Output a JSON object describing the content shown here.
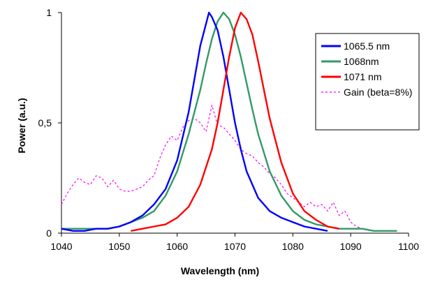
{
  "chart_data": {
    "type": "line",
    "title": "",
    "xlabel": "Wavelength (nm)",
    "ylabel": "Power (a.u.)",
    "xlim": [
      1040,
      1100
    ],
    "ylim": [
      0,
      1
    ],
    "x_ticks": [
      "1040",
      "1050",
      "1060",
      "1070",
      "1080",
      "1090",
      "1100"
    ],
    "y_ticks": [
      "0",
      "0,5",
      "1"
    ],
    "x_tick_values": [
      1040,
      1050,
      1060,
      1070,
      1080,
      1090,
      1100
    ],
    "y_tick_values": [
      0,
      0.5,
      1
    ],
    "grid": false,
    "legend_position": "top-right",
    "series": [
      {
        "name": "1065.5 nm",
        "color": "#0000ff",
        "style": "solid",
        "points": [
          [
            1040,
            0.02
          ],
          [
            1042,
            0.01
          ],
          [
            1044,
            0.01
          ],
          [
            1046,
            0.02
          ],
          [
            1048,
            0.02
          ],
          [
            1050,
            0.03
          ],
          [
            1052,
            0.05
          ],
          [
            1054,
            0.08
          ],
          [
            1056,
            0.13
          ],
          [
            1058,
            0.2
          ],
          [
            1060,
            0.33
          ],
          [
            1062,
            0.55
          ],
          [
            1063,
            0.7
          ],
          [
            1064,
            0.85
          ],
          [
            1065,
            0.95
          ],
          [
            1065.5,
            1.0
          ],
          [
            1066,
            0.98
          ],
          [
            1067,
            0.92
          ],
          [
            1068,
            0.8
          ],
          [
            1069,
            0.65
          ],
          [
            1070,
            0.5
          ],
          [
            1071,
            0.38
          ],
          [
            1072,
            0.28
          ],
          [
            1074,
            0.16
          ],
          [
            1076,
            0.1
          ],
          [
            1078,
            0.07
          ],
          [
            1080,
            0.05
          ],
          [
            1082,
            0.03
          ],
          [
            1084,
            0.02
          ],
          [
            1086,
            0.01
          ]
        ]
      },
      {
        "name": "1068nm",
        "color": "#339966",
        "style": "solid",
        "points": [
          [
            1040,
            0.02
          ],
          [
            1042,
            0.02
          ],
          [
            1044,
            0.02
          ],
          [
            1046,
            0.02
          ],
          [
            1048,
            0.02
          ],
          [
            1050,
            0.03
          ],
          [
            1052,
            0.05
          ],
          [
            1054,
            0.07
          ],
          [
            1056,
            0.1
          ],
          [
            1058,
            0.17
          ],
          [
            1060,
            0.28
          ],
          [
            1062,
            0.45
          ],
          [
            1064,
            0.65
          ],
          [
            1065,
            0.77
          ],
          [
            1066,
            0.88
          ],
          [
            1067,
            0.96
          ],
          [
            1068,
            1.0
          ],
          [
            1069,
            0.97
          ],
          [
            1070,
            0.9
          ],
          [
            1071,
            0.8
          ],
          [
            1072,
            0.68
          ],
          [
            1073,
            0.56
          ],
          [
            1074,
            0.45
          ],
          [
            1076,
            0.28
          ],
          [
            1078,
            0.17
          ],
          [
            1080,
            0.1
          ],
          [
            1082,
            0.06
          ],
          [
            1084,
            0.04
          ],
          [
            1086,
            0.03
          ],
          [
            1088,
            0.02
          ],
          [
            1090,
            0.02
          ],
          [
            1092,
            0.02
          ],
          [
            1094,
            0.01
          ],
          [
            1096,
            0.01
          ],
          [
            1098,
            0.01
          ]
        ]
      },
      {
        "name": "1071 nm",
        "color": "#ff0000",
        "style": "solid",
        "points": [
          [
            1052,
            0.01
          ],
          [
            1054,
            0.02
          ],
          [
            1056,
            0.03
          ],
          [
            1058,
            0.04
          ],
          [
            1060,
            0.07
          ],
          [
            1062,
            0.12
          ],
          [
            1064,
            0.22
          ],
          [
            1066,
            0.38
          ],
          [
            1067,
            0.5
          ],
          [
            1068,
            0.65
          ],
          [
            1069,
            0.8
          ],
          [
            1070,
            0.93
          ],
          [
            1071,
            1.0
          ],
          [
            1072,
            0.97
          ],
          [
            1073,
            0.9
          ],
          [
            1074,
            0.78
          ],
          [
            1075,
            0.65
          ],
          [
            1076,
            0.52
          ],
          [
            1077,
            0.42
          ],
          [
            1078,
            0.32
          ],
          [
            1080,
            0.18
          ],
          [
            1082,
            0.1
          ],
          [
            1084,
            0.06
          ],
          [
            1086,
            0.03
          ],
          [
            1088,
            0.02
          ]
        ]
      },
      {
        "name": "Gain (beta=8%)",
        "color": "#ff00ff",
        "style": "dashed",
        "points": [
          [
            1040,
            0.13
          ],
          [
            1041,
            0.18
          ],
          [
            1042,
            0.22
          ],
          [
            1043,
            0.25
          ],
          [
            1044,
            0.23
          ],
          [
            1045,
            0.22
          ],
          [
            1046,
            0.26
          ],
          [
            1047,
            0.25
          ],
          [
            1048,
            0.21
          ],
          [
            1049,
            0.24
          ],
          [
            1050,
            0.2
          ],
          [
            1051,
            0.19
          ],
          [
            1052,
            0.19
          ],
          [
            1054,
            0.21
          ],
          [
            1055,
            0.24
          ],
          [
            1056,
            0.26
          ],
          [
            1057,
            0.34
          ],
          [
            1058,
            0.4
          ],
          [
            1059,
            0.44
          ],
          [
            1060,
            0.42
          ],
          [
            1061,
            0.48
          ],
          [
            1062,
            0.51
          ],
          [
            1063,
            0.52
          ],
          [
            1064,
            0.5
          ],
          [
            1065,
            0.46
          ],
          [
            1066,
            0.58
          ],
          [
            1067,
            0.49
          ],
          [
            1068,
            0.48
          ],
          [
            1069,
            0.45
          ],
          [
            1070,
            0.42
          ],
          [
            1071,
            0.38
          ],
          [
            1072,
            0.36
          ],
          [
            1073,
            0.35
          ],
          [
            1074,
            0.32
          ],
          [
            1075,
            0.3
          ],
          [
            1076,
            0.27
          ],
          [
            1077,
            0.25
          ],
          [
            1078,
            0.22
          ],
          [
            1079,
            0.18
          ],
          [
            1080,
            0.16
          ],
          [
            1081,
            0.14
          ],
          [
            1082,
            0.12
          ],
          [
            1083,
            0.14
          ],
          [
            1084,
            0.12
          ],
          [
            1085,
            0.13
          ],
          [
            1086,
            0.1
          ],
          [
            1087,
            0.14
          ],
          [
            1088,
            0.08
          ],
          [
            1089,
            0.1
          ],
          [
            1090,
            0.05
          ],
          [
            1091,
            0.03
          ],
          [
            1092,
            0.02
          ],
          [
            1094,
            0.01
          ]
        ]
      }
    ]
  }
}
